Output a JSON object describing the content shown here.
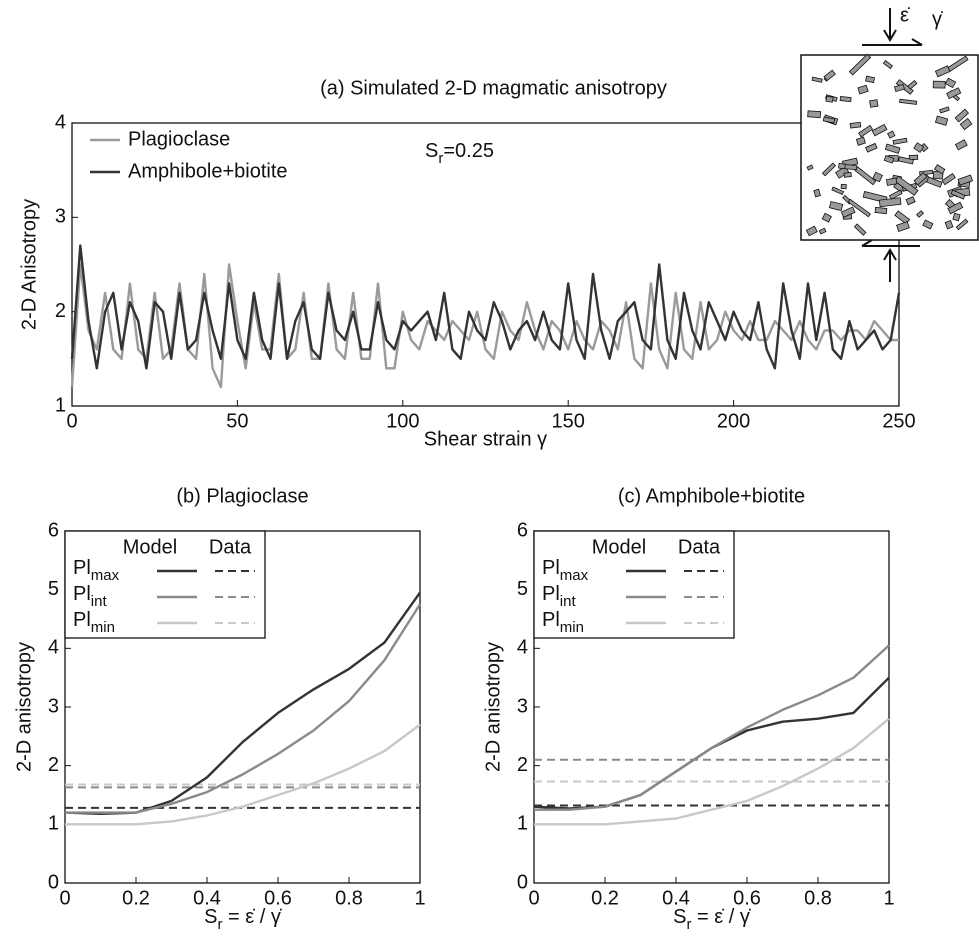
{
  "chart_data": [
    {
      "type": "line",
      "title": "(a) Simulated 2-D magmatic anisotropy",
      "xlabel": "Shear strain γ",
      "ylabel": "2-D Anisotropy",
      "xlim": [
        0,
        250
      ],
      "ylim": [
        1,
        4
      ],
      "xticks": [
        0,
        50,
        100,
        150,
        200,
        250
      ],
      "yticks": [
        1,
        2,
        3,
        4
      ],
      "legend": "upper left",
      "annotation": {
        "text": "S",
        "sub": "r",
        "after": "=0.25"
      },
      "x": [
        0,
        2.5,
        5,
        7.5,
        10,
        12.5,
        15,
        17.5,
        20,
        22.5,
        25,
        27.5,
        30,
        32.5,
        35,
        37.5,
        40,
        42.5,
        45,
        47.5,
        50,
        52.5,
        55,
        57.5,
        60,
        62.5,
        65,
        67.5,
        70,
        72.5,
        75,
        77.5,
        80,
        82.5,
        85,
        87.5,
        90,
        92.5,
        95,
        97.5,
        100,
        102.5,
        105,
        107.5,
        110,
        112.5,
        115,
        117.5,
        120,
        122.5,
        125,
        127.5,
        130,
        132.5,
        135,
        137.5,
        140,
        142.5,
        145,
        147.5,
        150,
        152.5,
        155,
        157.5,
        160,
        162.5,
        165,
        167.5,
        170,
        172.5,
        175,
        177.5,
        180,
        182.5,
        185,
        187.5,
        190,
        192.5,
        195,
        197.5,
        200,
        202.5,
        205,
        207.5,
        210,
        212.5,
        215,
        217.5,
        220,
        222.5,
        225,
        227.5,
        230,
        232.5,
        235,
        237.5,
        240,
        242.5,
        245,
        247.5,
        250
      ],
      "series": [
        {
          "name": "Plagioclase",
          "color": "#9a9a9a",
          "values": [
            1.2,
            2.5,
            1.8,
            1.6,
            2.2,
            1.6,
            1.5,
            2.3,
            1.6,
            1.5,
            2.2,
            1.5,
            1.6,
            2.3,
            1.6,
            1.5,
            2.4,
            1.4,
            1.2,
            2.5,
            1.9,
            1.4,
            2.1,
            1.6,
            1.6,
            2.4,
            1.5,
            1.6,
            2.2,
            1.5,
            1.5,
            2.3,
            1.6,
            1.5,
            2.2,
            1.5,
            1.5,
            2.3,
            1.4,
            1.4,
            2.0,
            1.7,
            1.6,
            1.9,
            1.8,
            1.7,
            1.9,
            1.8,
            1.7,
            2.0,
            1.6,
            1.5,
            2.0,
            1.8,
            1.7,
            2.1,
            1.8,
            1.6,
            1.9,
            1.8,
            1.6,
            1.9,
            1.7,
            1.6,
            1.9,
            1.8,
            1.6,
            2.1,
            1.5,
            1.4,
            2.3,
            1.6,
            1.4,
            2.2,
            1.6,
            1.5,
            2.1,
            1.6,
            1.7,
            2.0,
            1.8,
            1.7,
            1.9,
            1.7,
            1.7,
            1.9,
            1.8,
            1.7,
            1.9,
            1.7,
            1.6,
            1.8,
            1.8,
            1.7,
            1.8,
            1.8,
            1.7,
            1.9,
            1.8,
            1.7,
            1.7
          ]
        },
        {
          "name": "Amphibole+biotite",
          "color": "#333333",
          "values": [
            1.5,
            2.7,
            1.9,
            1.4,
            2.0,
            2.2,
            1.6,
            2.1,
            1.9,
            1.4,
            2.1,
            2.0,
            1.5,
            2.2,
            1.6,
            1.7,
            2.2,
            1.8,
            1.5,
            2.3,
            1.7,
            1.5,
            2.2,
            1.7,
            1.5,
            2.3,
            1.5,
            1.9,
            2.1,
            1.6,
            1.5,
            2.2,
            1.8,
            1.7,
            2.0,
            1.6,
            1.6,
            2.1,
            1.7,
            1.6,
            1.9,
            1.8,
            1.9,
            2.0,
            1.7,
            2.2,
            1.6,
            1.5,
            2.0,
            1.8,
            1.7,
            2.1,
            1.9,
            1.6,
            1.8,
            1.9,
            1.7,
            2.0,
            1.7,
            1.6,
            2.3,
            1.7,
            1.5,
            2.4,
            1.8,
            1.5,
            1.9,
            2.0,
            2.1,
            1.7,
            1.6,
            2.5,
            1.7,
            1.5,
            2.2,
            1.8,
            1.6,
            2.1,
            1.9,
            1.7,
            2.0,
            1.8,
            1.7,
            2.1,
            1.6,
            1.4,
            2.3,
            1.8,
            1.5,
            2.3,
            1.7,
            2.2,
            1.6,
            1.5,
            1.9,
            1.6,
            1.7,
            1.8,
            1.6,
            1.7,
            2.2
          ]
        }
      ]
    },
    {
      "type": "line",
      "title": "(b) Plagioclase",
      "xlabel": {
        "text": "S",
        "sub": "r",
        "after": " = ε̇ / γ̇"
      },
      "ylabel": "2-D anisotropy",
      "xlim": [
        0,
        1
      ],
      "ylim": [
        0,
        6
      ],
      "xticks": [
        0,
        0.2,
        0.4,
        0.6,
        0.8,
        1
      ],
      "yticks": [
        0,
        1,
        2,
        3,
        4,
        5,
        6
      ],
      "legend": "upper left",
      "legend_headers": [
        "Model",
        "Data"
      ],
      "x": [
        0,
        0.1,
        0.2,
        0.3,
        0.4,
        0.5,
        0.6,
        0.7,
        0.8,
        0.9,
        1
      ],
      "series": [
        {
          "name": "Pl",
          "name_sub": "max",
          "color": "#333333",
          "values": [
            1.2,
            1.18,
            1.2,
            1.4,
            1.8,
            2.4,
            2.9,
            3.3,
            3.65,
            4.1,
            4.95
          ],
          "data_value": 1.28
        },
        {
          "name": "Pl",
          "name_sub": "int",
          "color": "#8a8a8a",
          "values": [
            1.2,
            1.2,
            1.2,
            1.35,
            1.55,
            1.85,
            2.2,
            2.6,
            3.1,
            3.8,
            4.75
          ],
          "data_value": 1.63
        },
        {
          "name": "Pl",
          "name_sub": "min",
          "color": "#c8c8c8",
          "values": [
            1.0,
            1.0,
            1.0,
            1.05,
            1.15,
            1.3,
            1.5,
            1.7,
            1.95,
            2.25,
            2.7
          ],
          "data_value": 1.68
        }
      ]
    },
    {
      "type": "line",
      "title": "(c) Amphibole+biotite",
      "xlabel": {
        "text": "S",
        "sub": "r",
        "after": " = ε̇ / γ̇"
      },
      "ylabel": "2-D anisotropy",
      "xlim": [
        0,
        1
      ],
      "ylim": [
        0,
        6
      ],
      "xticks": [
        0,
        0.2,
        0.4,
        0.6,
        0.8,
        1
      ],
      "yticks": [
        0,
        1,
        2,
        3,
        4,
        5,
        6
      ],
      "legend": "upper left",
      "legend_headers": [
        "Model",
        "Data"
      ],
      "x": [
        0,
        0.1,
        0.2,
        0.3,
        0.4,
        0.5,
        0.6,
        0.7,
        0.8,
        0.9,
        1
      ],
      "series": [
        {
          "name": "Pl",
          "name_sub": "max",
          "color": "#333333",
          "values": [
            1.3,
            1.27,
            1.3,
            1.5,
            1.9,
            2.3,
            2.6,
            2.75,
            2.8,
            2.9,
            3.5
          ],
          "data_value": 1.32
        },
        {
          "name": "Pl",
          "name_sub": "int",
          "color": "#8a8a8a",
          "values": [
            1.25,
            1.25,
            1.3,
            1.5,
            1.9,
            2.3,
            2.65,
            2.95,
            3.2,
            3.5,
            4.05
          ],
          "data_value": 2.1
        },
        {
          "name": "Pl",
          "name_sub": "min",
          "color": "#c8c8c8",
          "values": [
            1.0,
            1.0,
            1.0,
            1.05,
            1.1,
            1.25,
            1.4,
            1.65,
            1.95,
            2.3,
            2.8
          ],
          "data_value": 1.73
        }
      ]
    }
  ],
  "inset": {
    "strain_rate_label": "ε̇",
    "shear_label": "γ̇"
  }
}
